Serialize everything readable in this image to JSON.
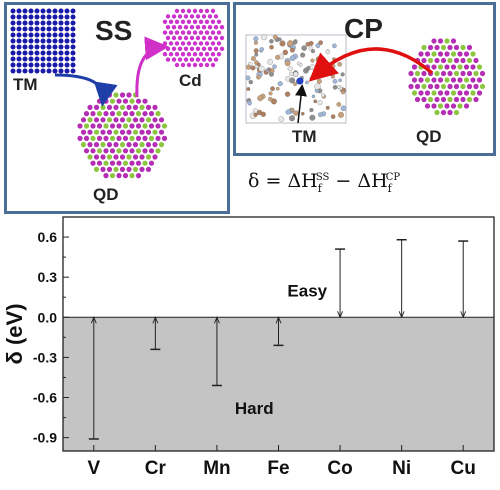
{
  "panels": {
    "ss": {
      "title": "SS",
      "label_tm": "TM",
      "label_cd": "Cd",
      "label_qd": "QD"
    },
    "cp": {
      "title": "CP",
      "label_tm": "TM",
      "label_qd": "QD"
    }
  },
  "formula": {
    "lhs": "δ = ΔH",
    "sub1": "f",
    "sup1": "SS",
    "minus": " − ΔH",
    "sub2": "f",
    "sup2": "CP"
  },
  "colors": {
    "frame": "#4a6e96",
    "tm_atoms": "#1a1aa8",
    "cd_atoms": "#cc33cc",
    "qd_magenta": "#b52db5",
    "qd_green": "#8cc63f",
    "arrow_blue": "#1f3fa8",
    "arrow_magenta": "#d030c8",
    "arrow_red": "#e01010",
    "hard_region": "#c4c4c4"
  },
  "chart_data": {
    "type": "bar",
    "categories": [
      "V",
      "Cr",
      "Mn",
      "Fe",
      "Co",
      "Ni",
      "Cu"
    ],
    "values": [
      -0.91,
      -0.24,
      -0.51,
      -0.21,
      0.51,
      0.58,
      0.57
    ],
    "ylabel": "δ (eV)",
    "ylim": [
      -1.0,
      0.75
    ],
    "yticks": [
      -0.9,
      -0.6,
      -0.3,
      0.0,
      0.3,
      0.6
    ],
    "ytick_labels": [
      "-0.9",
      "-0.6",
      "-0.3",
      "0.0",
      "0.3",
      "0.6"
    ],
    "annotations": [
      {
        "text": "Easy",
        "region": "positive"
      },
      {
        "text": "Hard",
        "region": "negative"
      }
    ],
    "grid": false
  }
}
